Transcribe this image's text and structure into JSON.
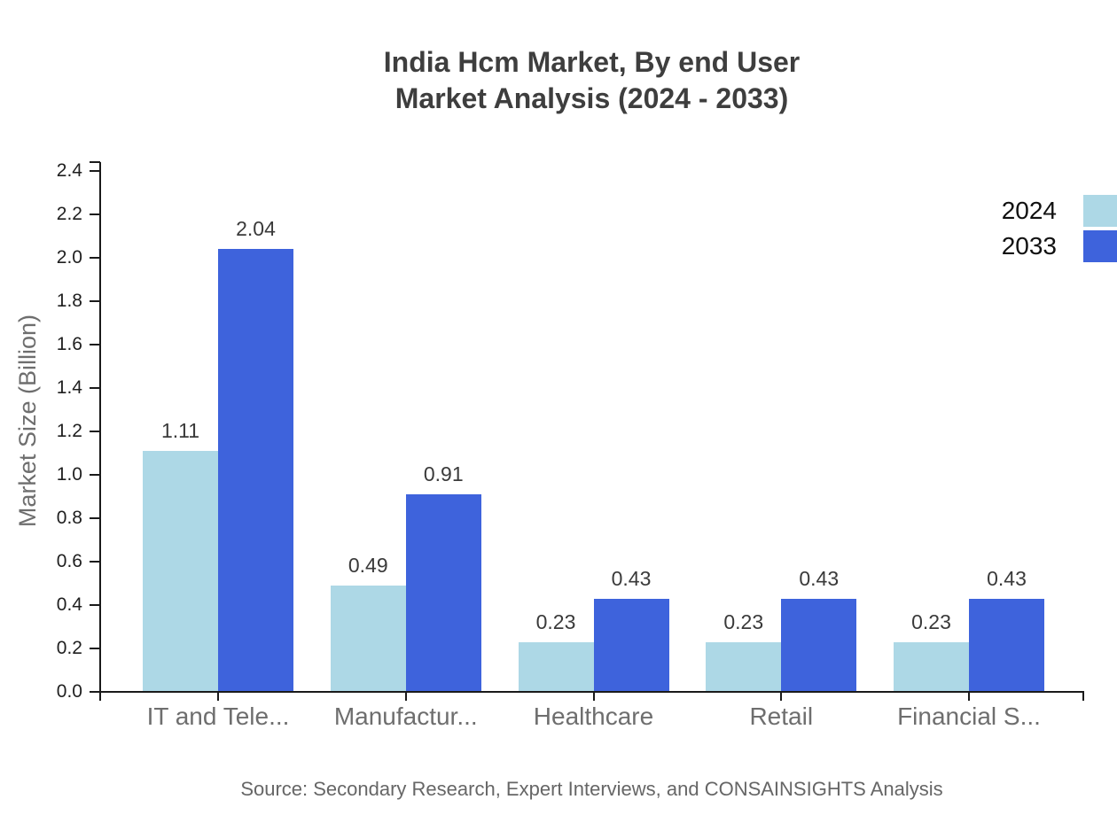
{
  "chart": {
    "title_line1": "India Hcm Market, By end User",
    "title_line2": "Market Analysis (2024 - 2033)",
    "ylabel": "Market Size (Billion)",
    "source": "Source: Secondary Research, Expert Interviews, and CONSAINSIGHTS Analysis"
  },
  "chart_data": {
    "type": "bar",
    "title": "India Hcm Market, By end User Market Analysis (2024 - 2033)",
    "categories": [
      "IT and Tele...",
      "Manufactur...",
      "Healthcare",
      "Retail",
      "Financial S..."
    ],
    "series": [
      {
        "name": "2024",
        "color": "#ADD8E6",
        "values": [
          1.11,
          0.49,
          0.23,
          0.23,
          0.23
        ],
        "labels": [
          "1.11",
          "0.49",
          "0.23",
          "0.23",
          "0.23"
        ]
      },
      {
        "name": "2033",
        "color": "#3E63DC",
        "values": [
          2.04,
          0.91,
          0.43,
          0.43,
          0.43
        ],
        "labels": [
          "2.04",
          "0.91",
          "0.43",
          "0.43",
          "0.43"
        ]
      }
    ],
    "xlabel": "",
    "ylabel": "Market Size (Billion)",
    "ylim": [
      0,
      2.4
    ],
    "ytick_step": 0.2,
    "ytick_format_decimals": 1,
    "grid": false,
    "legend_position": "top-right",
    "axis_color": "#1a1a1a"
  }
}
